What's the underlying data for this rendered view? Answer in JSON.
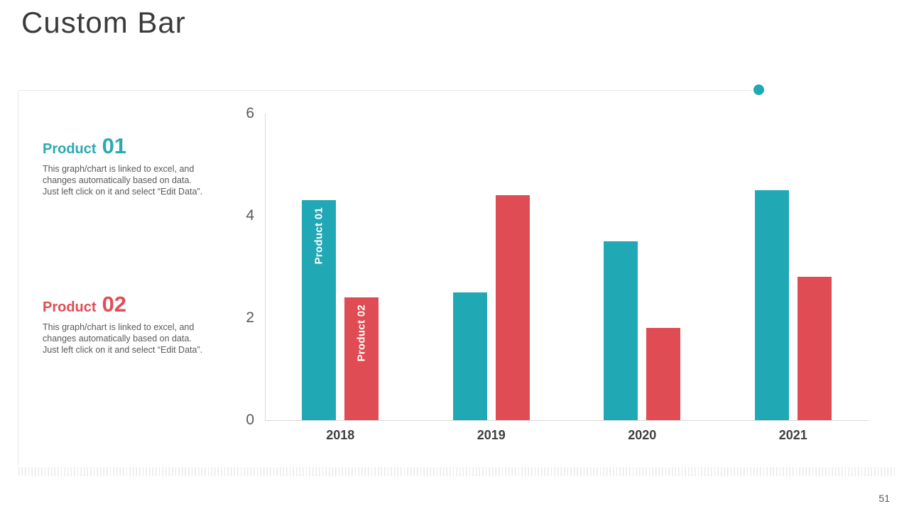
{
  "slide": {
    "title": "Custom Bar",
    "page_number": "51"
  },
  "legend": [
    {
      "name_prefix": "Product",
      "name_number": "01",
      "color": "#2aa9b2",
      "description_lines": [
        "This graph/chart is linked to excel, and",
        "changes automatically based on data.",
        "Just left click on it and select “Edit Data”."
      ]
    },
    {
      "name_prefix": "Product",
      "name_number": "02",
      "color": "#e04d55",
      "description_lines": [
        "This graph/chart is linked to excel, and",
        "changes automatically based on data.",
        "Just left click on it and select “Edit Data”."
      ]
    }
  ],
  "chart_data": {
    "type": "bar",
    "categories": [
      "2018",
      "2019",
      "2020",
      "2021"
    ],
    "series": [
      {
        "name": "Product 01",
        "color": "#21a8b5",
        "values": [
          4.3,
          2.5,
          3.5,
          4.5
        ]
      },
      {
        "name": "Product 02",
        "color": "#e04c53",
        "values": [
          2.4,
          4.4,
          1.8,
          2.8
        ]
      }
    ],
    "ylim": [
      0,
      6
    ],
    "yticks": [
      0,
      2,
      4,
      6
    ],
    "grid": false,
    "legend_position": "left-panel",
    "in_bar_series_labels_on_category": "2018"
  }
}
